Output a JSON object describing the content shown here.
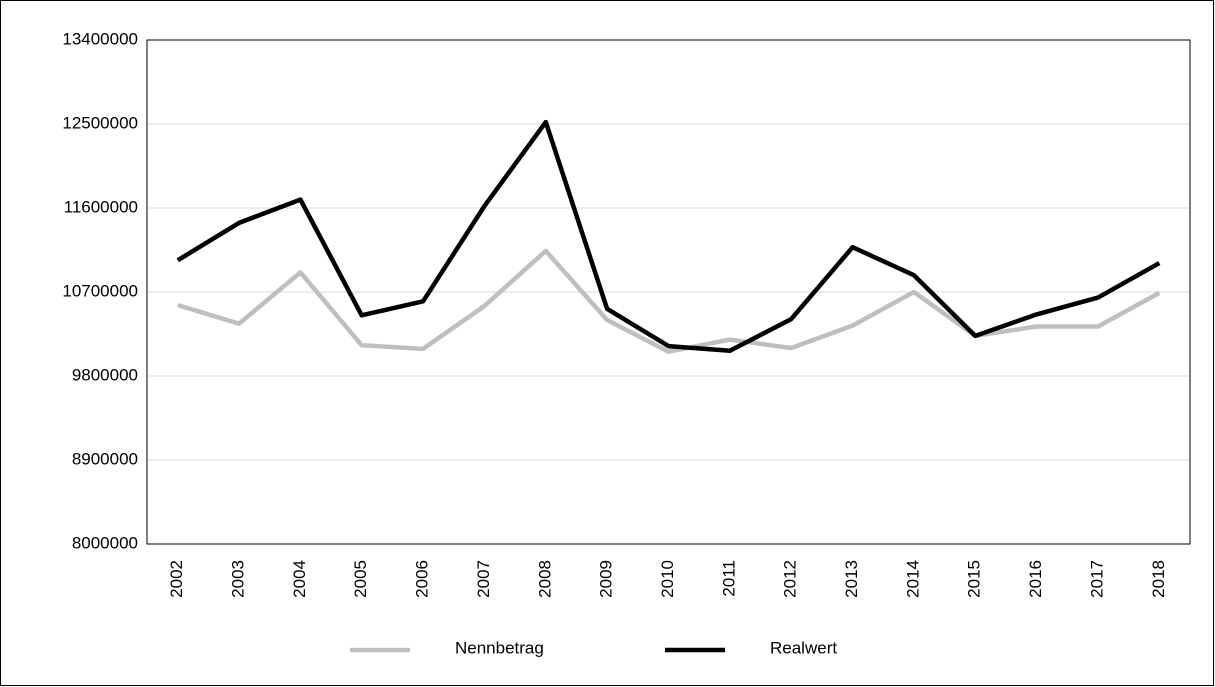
{
  "chart_data": {
    "type": "line",
    "categories": [
      "2002",
      "2003",
      "2004",
      "2005",
      "2006",
      "2007",
      "2008",
      "2009",
      "2010",
      "2011",
      "2012",
      "2013",
      "2014",
      "2015",
      "2016",
      "2017",
      "2018"
    ],
    "series": [
      {
        "name": "Nennbetrag",
        "color": "#bfbfbf",
        "values": [
          10560000,
          10360000,
          10910000,
          10130000,
          10090000,
          10550000,
          11140000,
          10400000,
          10060000,
          10190000,
          10100000,
          10340000,
          10700000,
          10230000,
          10330000,
          10330000,
          10690000
        ]
      },
      {
        "name": "Realwert",
        "color": "#000000",
        "values": [
          11040000,
          11440000,
          11690000,
          10450000,
          10600000,
          11620000,
          12520000,
          10520000,
          10120000,
          10070000,
          10410000,
          11180000,
          10880000,
          10230000,
          10460000,
          10640000,
          11010000
        ]
      }
    ],
    "ylim": [
      8000000,
      13400000
    ],
    "yticks": [
      8000000,
      8900000,
      9800000,
      10700000,
      11600000,
      12500000,
      13400000
    ],
    "grid": true,
    "legend": "bottom"
  }
}
